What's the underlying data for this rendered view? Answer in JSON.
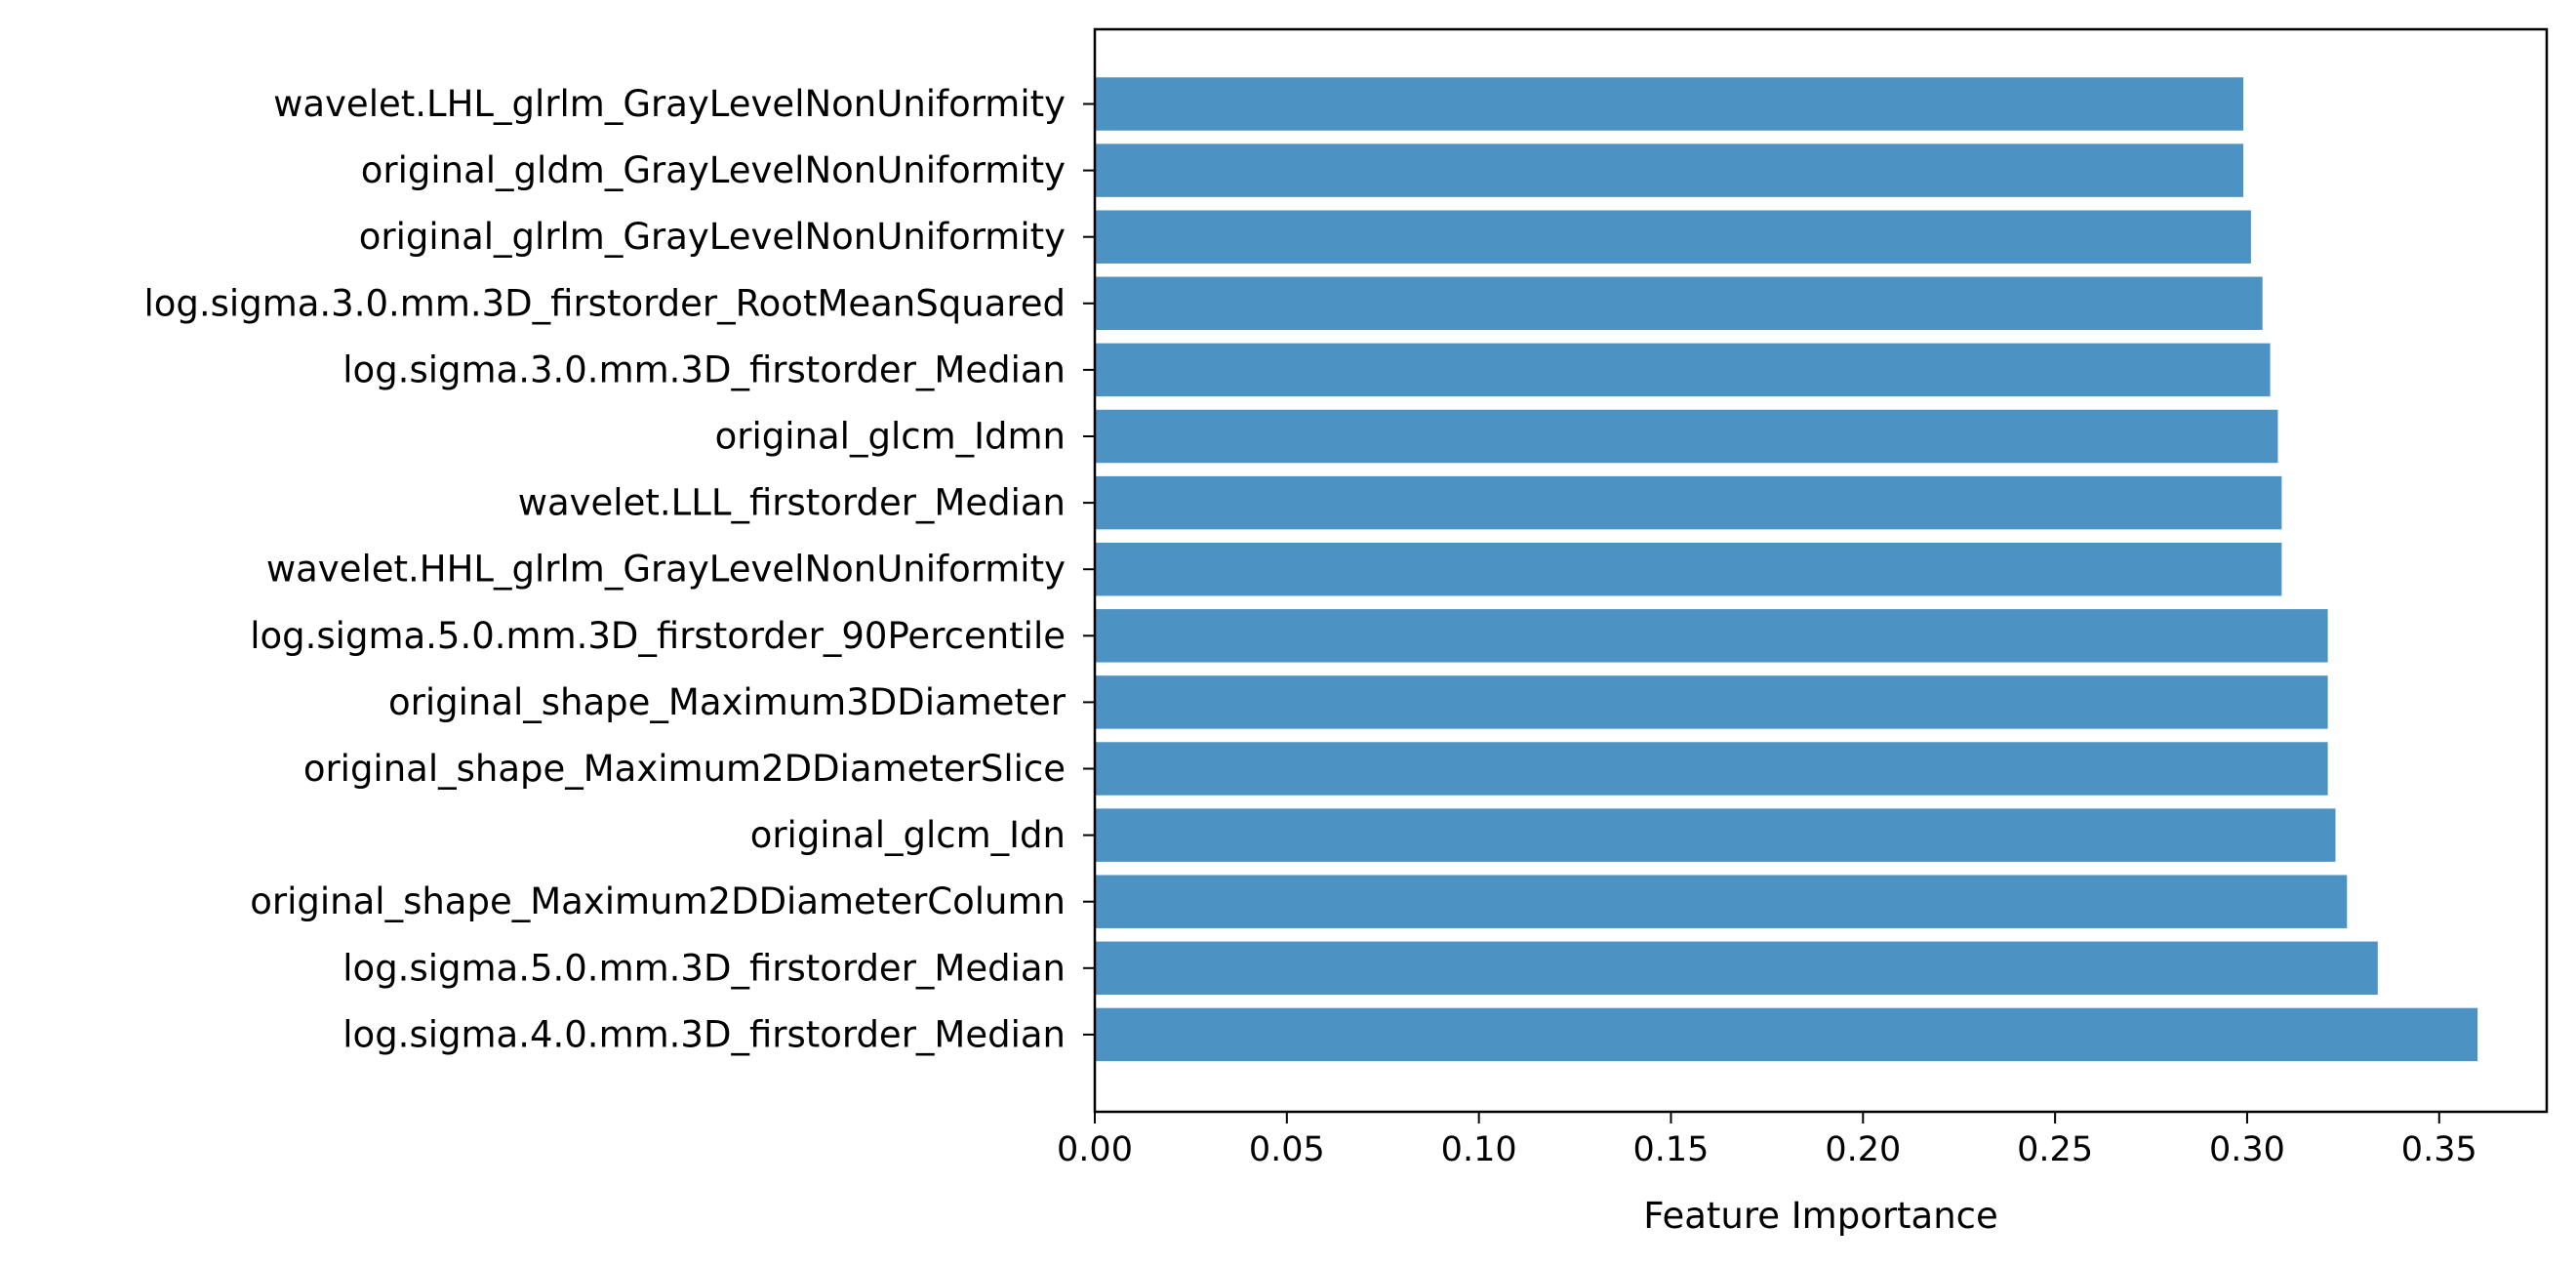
{
  "chart_data": {
    "type": "bar",
    "orientation": "horizontal",
    "categories": [
      "wavelet.LHL_glrlm_GrayLevelNonUniformity",
      "original_gldm_GrayLevelNonUniformity",
      "original_glrlm_GrayLevelNonUniformity",
      "log.sigma.3.0.mm.3D_firstorder_RootMeanSquared",
      "log.sigma.3.0.mm.3D_firstorder_Median",
      "original_glcm_Idmn",
      "wavelet.LLL_firstorder_Median",
      "wavelet.HHL_glrlm_GrayLevelNonUniformity",
      "log.sigma.5.0.mm.3D_firstorder_90Percentile",
      "original_shape_Maximum3DDiameter",
      "original_shape_Maximum2DDiameterSlice",
      "original_glcm_Idn",
      "original_shape_Maximum2DDiameterColumn",
      "log.sigma.5.0.mm.3D_firstorder_Median",
      "log.sigma.4.0.mm.3D_firstorder_Median"
    ],
    "values": [
      0.299,
      0.299,
      0.301,
      0.304,
      0.306,
      0.308,
      0.309,
      0.309,
      0.321,
      0.321,
      0.321,
      0.323,
      0.326,
      0.334,
      0.36
    ],
    "title": "",
    "xlabel": "Feature Importance",
    "ylabel": "",
    "xlim": [
      0,
      0.378
    ],
    "xticks": [
      0.0,
      0.05,
      0.1,
      0.15,
      0.2,
      0.25,
      0.3,
      0.35
    ],
    "xtick_labels": [
      "0.00",
      "0.05",
      "0.10",
      "0.15",
      "0.20",
      "0.25",
      "0.30",
      "0.35"
    ],
    "bar_color": "#4c92c3",
    "grid": false,
    "legend": "none"
  }
}
